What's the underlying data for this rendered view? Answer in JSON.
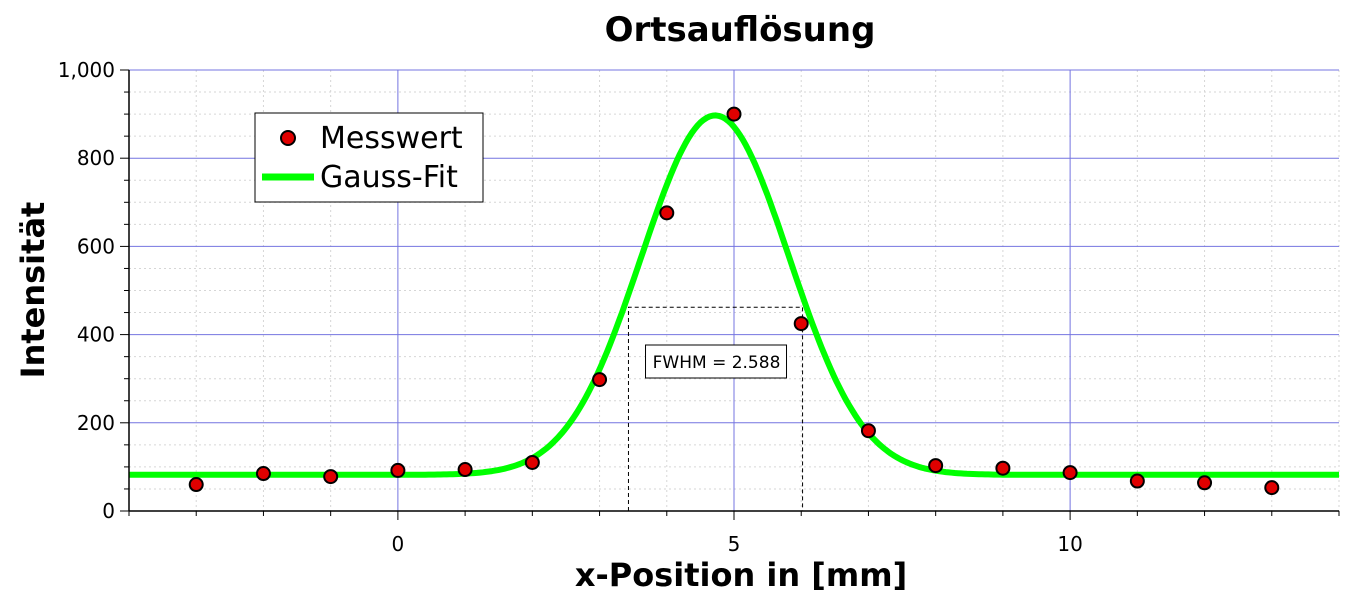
{
  "chart_data": {
    "type": "scatter",
    "title": "Ortsauflösung",
    "xlabel": "x-Position in [mm]",
    "ylabel": "Intensität",
    "xlim": [
      -4,
      14
    ],
    "ylim": [
      0,
      1000
    ],
    "x_ticks": [
      0,
      5,
      10
    ],
    "x_tick_labels": [
      "0",
      "5",
      "10"
    ],
    "y_ticks": [
      0,
      200,
      400,
      600,
      800,
      1000
    ],
    "y_tick_labels": [
      "0",
      "200",
      "400",
      "600",
      "800",
      "1,000"
    ],
    "grid": true,
    "legend_position": "top-left",
    "series": [
      {
        "name": "Messwert",
        "kind": "points",
        "color": "#e00000",
        "x": [
          -3,
          -2,
          -1,
          0,
          1,
          2,
          3,
          4,
          5,
          6,
          7,
          8,
          9,
          10,
          11,
          12,
          13
        ],
        "y": [
          60,
          85,
          78,
          92,
          94,
          110,
          298,
          676,
          900,
          425,
          182,
          103,
          97,
          87,
          68,
          64,
          53
        ]
      },
      {
        "name": "Gauss-Fit",
        "kind": "line",
        "color": "#00ff00",
        "function": "gaussian",
        "baseline": 82,
        "amplitude": 815,
        "center": 4.72,
        "fwhm": 2.588
      }
    ],
    "annotations": {
      "fwhm_label": "FWHM = 2.588",
      "fwhm_box": {
        "x_start": 3.43,
        "x_end": 6.02,
        "y_top": 462
      }
    }
  }
}
